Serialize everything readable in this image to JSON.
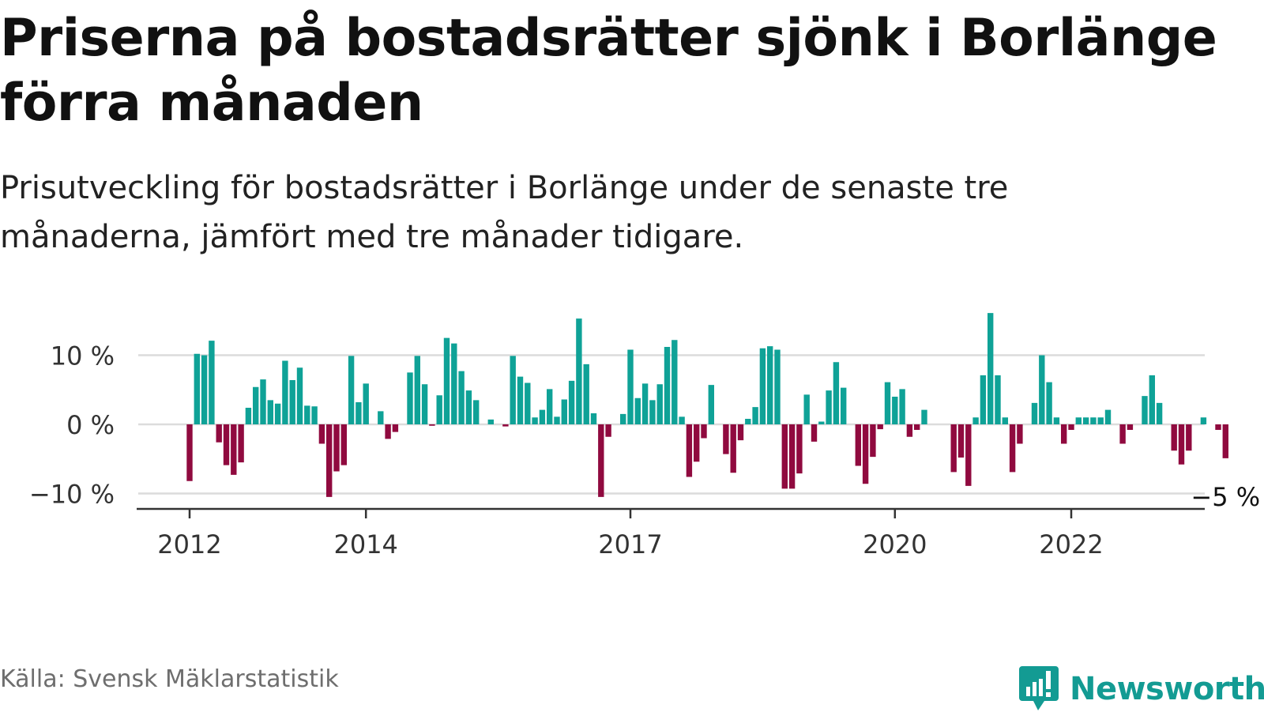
{
  "title": "Priserna på bostadsrätter sjönk i Borlänge förra månaden",
  "subtitle": "Prisutveckling för bostadsrätter i Borlänge under de senaste tre månaderna, jämfört med tre månader tidigare.",
  "source": "Källa: Svensk Mäklarstatistik",
  "brand": {
    "name": "Newsworthy",
    "icon": "newsworthy-logo-icon",
    "color": "#139b93"
  },
  "colors": {
    "positive": "#0fa297",
    "negative": "#900a3f",
    "grid": "#dcdcdc",
    "axis": "#333333"
  },
  "chart_data": {
    "type": "bar",
    "unit": "%",
    "x_start": "2012-01",
    "x_ticks": [
      {
        "index": 0,
        "label": "2012"
      },
      {
        "index": 24,
        "label": "2014"
      },
      {
        "index": 60,
        "label": "2017"
      },
      {
        "index": 96,
        "label": "2020"
      },
      {
        "index": 120,
        "label": "2022"
      }
    ],
    "y_ticks": [
      {
        "value": 10,
        "label": "10 %"
      },
      {
        "value": 0,
        "label": "0 %"
      },
      {
        "value": -10,
        "label": "−10 %"
      }
    ],
    "ylim": [
      -12,
      17
    ],
    "grid": true,
    "last_label": "−5 %",
    "values": [
      -8.2,
      10.2,
      10,
      12.1,
      -2.6,
      -5.9,
      -7.3,
      -5.5,
      2.4,
      5.4,
      6.5,
      3.5,
      3,
      9.2,
      6.4,
      8.2,
      2.7,
      2.6,
      -2.8,
      -10.5,
      -6.8,
      -5.9,
      9.9,
      3.2,
      5.9,
      0,
      1.9,
      -2.1,
      -1.1,
      0,
      7.5,
      9.9,
      5.8,
      -0.2,
      4.2,
      12.5,
      11.7,
      7.7,
      4.9,
      3.5,
      0,
      0.7,
      0,
      -0.3,
      9.9,
      6.9,
      6,
      1,
      2.1,
      5.1,
      1.1,
      3.6,
      6.3,
      15.3,
      8.7,
      1.6,
      -10.5,
      -1.8,
      0,
      1.5,
      10.8,
      3.8,
      5.9,
      3.5,
      5.8,
      11.2,
      12.2,
      1.1,
      -7.6,
      -5.4,
      -2,
      5.7,
      0,
      -4.3,
      -7,
      -2.3,
      0.8,
      2.5,
      11,
      11.3,
      10.8,
      -9.3,
      -9.3,
      -7.1,
      4.3,
      -2.5,
      0.4,
      4.9,
      9,
      5.3,
      0,
      -6,
      -8.6,
      -4.7,
      -0.7,
      6.1,
      4,
      5.1,
      -1.8,
      -0.8,
      2.1,
      0,
      0,
      0,
      -6.9,
      -4.8,
      -8.9,
      1,
      7.1,
      16.1,
      7.1,
      1,
      -6.9,
      -2.8,
      0,
      3.1,
      10,
      6.1,
      1,
      -2.8,
      -0.8,
      1,
      1,
      1,
      1,
      2.1,
      0,
      -2.8,
      -0.8,
      0,
      4.1,
      7.1,
      3.1,
      0,
      -3.8,
      -5.8,
      -3.8,
      0,
      1,
      0,
      -0.8,
      -4.9
    ]
  }
}
